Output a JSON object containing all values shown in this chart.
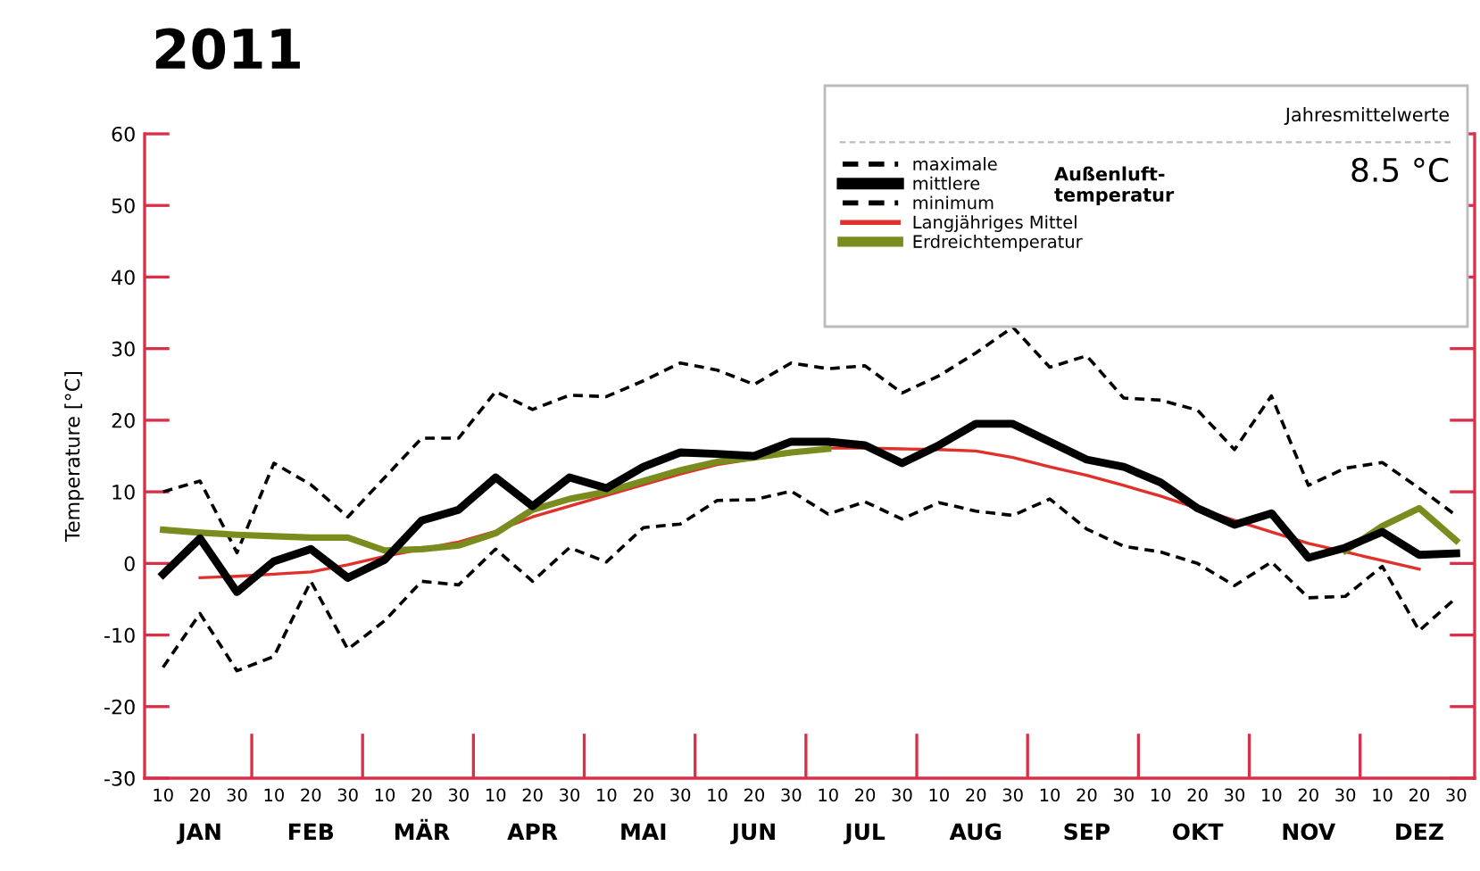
{
  "chart_data": {
    "type": "line",
    "title": "2011",
    "ylabel": "Temperature [°C]",
    "categories": [
      "10",
      "20",
      "30",
      "10",
      "20",
      "30",
      "10",
      "20",
      "30",
      "10",
      "20",
      "30",
      "10",
      "20",
      "30",
      "10",
      "20",
      "30",
      "10",
      "20",
      "30",
      "10",
      "20",
      "30",
      "10",
      "20",
      "30",
      "10",
      "20",
      "30",
      "10",
      "20",
      "30",
      "10",
      "20",
      "30"
    ],
    "series": [
      {
        "name": "maximale",
        "color": "#000000",
        "line_style": "dashed",
        "values": [
          10,
          11.5,
          1.5,
          14,
          11,
          6.5,
          12,
          17.5,
          17.5,
          24,
          21.5,
          23.5,
          23.3,
          25.5,
          28,
          27,
          25,
          28,
          27.2,
          27.6,
          23.8,
          26.2,
          29.4,
          33,
          27.4,
          29,
          23.1,
          22.8,
          21.4,
          15.9,
          23.4,
          10.9,
          13.3,
          14.1,
          10.5,
          6.7
        ]
      },
      {
        "name": "mittlere",
        "color": "#000000",
        "line_style": "solid",
        "values": [
          -1.5,
          3.5,
          -4,
          0.3,
          2,
          -2,
          0.5,
          6,
          7.5,
          12,
          8,
          12,
          10.5,
          13.5,
          15.5,
          15.3,
          15,
          17,
          17,
          16.5,
          14,
          16.5,
          19.5,
          19.5,
          17,
          14.5,
          13.5,
          11.3,
          7.7,
          5.4,
          7,
          0.8,
          2.2,
          4.4,
          1.2,
          1.4
        ]
      },
      {
        "name": "minimum",
        "color": "#000000",
        "line_style": "dashed",
        "values": [
          -14.5,
          -7,
          -15,
          -13,
          -2.5,
          -12,
          -8,
          -2.5,
          -3,
          2,
          -2.5,
          2.2,
          0.2,
          5,
          5.5,
          8.8,
          8.9,
          10.1,
          6.9,
          8.6,
          6.2,
          8.5,
          7.3,
          6.7,
          9,
          4.8,
          2.4,
          1.6,
          0,
          -3.1,
          0.2,
          -4.8,
          -4.6,
          -0.4,
          -9.4,
          -4.8
        ]
      },
      {
        "name": "Langjähriges Mittel",
        "color": "#e0302a",
        "line_style": "solid",
        "values": [
          null,
          -2,
          -1.8,
          -1.5,
          -1.2,
          -0.2,
          1,
          2,
          3,
          4.5,
          6.5,
          8,
          9.5,
          11,
          12.5,
          13.8,
          14.6,
          15.3,
          16.1,
          16.1,
          16,
          15.9,
          15.7,
          14.8,
          13.5,
          12.3,
          10.9,
          9.4,
          7.7,
          6,
          4.4,
          2.8,
          1.6,
          0.4,
          -0.8,
          null
        ]
      },
      {
        "name": "Erdreichtemperatur",
        "color": "#7a8c1e",
        "line_style": "solid",
        "values": [
          4.7,
          4.3,
          4,
          3.8,
          3.6,
          3.6,
          1.8,
          2,
          2.5,
          4.2,
          7.5,
          9,
          10,
          11.5,
          13,
          14.2,
          14.8,
          15.5,
          16,
          null,
          null,
          null,
          null,
          null,
          null,
          null,
          null,
          null,
          null,
          null,
          null,
          null,
          1.8,
          5.2,
          7.7,
          3.2
        ]
      }
    ],
    "ylim": [
      -30,
      60
    ],
    "yticks": [
      -30,
      -20,
      -10,
      0,
      10,
      20,
      30,
      40,
      50,
      60
    ],
    "legend": "top right",
    "legend_title": "Jahresmittelwerte",
    "annotations": [
      "JAN",
      "FEB",
      "MÄR",
      "APR",
      "MAI",
      "JUN",
      "JUL",
      "AUG",
      "SEP",
      "OKT",
      "NOV",
      "DEZ",
      "Außenluft-\ntemperatur",
      "8.5 °C"
    ]
  }
}
